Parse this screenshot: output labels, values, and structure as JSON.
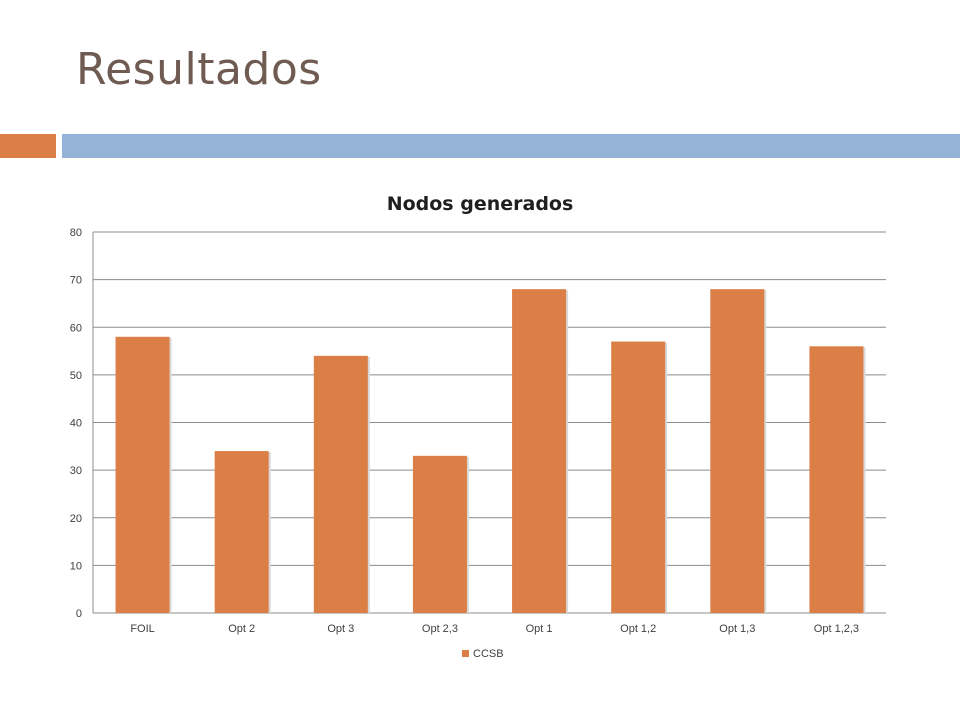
{
  "slide": {
    "title": "Resultados"
  },
  "colors": {
    "accent_orange": "#db7f47",
    "accent_blue": "#94b3d6",
    "bar_fill": "#db7f47",
    "gridline": "#8c8c8c",
    "title_text": "#6f5b52"
  },
  "chart_data": {
    "type": "bar",
    "title": "Nodos generados",
    "categories": [
      "FOIL",
      "Opt 2",
      "Opt 3",
      "Opt 2,3",
      "Opt 1",
      "Opt 1,2",
      "Opt 1,3",
      "Opt 1,2,3"
    ],
    "series": [
      {
        "name": "CCSB",
        "values": [
          58,
          34,
          54,
          33,
          68,
          57,
          68,
          56
        ]
      }
    ],
    "xlabel": "",
    "ylabel": "",
    "ylim": [
      0,
      80
    ],
    "yticks": [
      0,
      10,
      20,
      30,
      40,
      50,
      60,
      70,
      80
    ],
    "grid": true,
    "legend_position": "bottom"
  }
}
